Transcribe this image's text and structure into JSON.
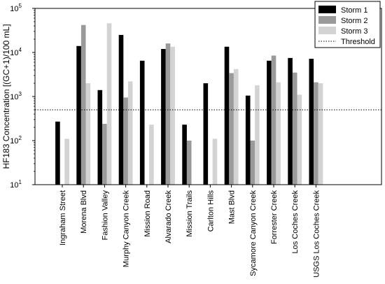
{
  "chart_data": {
    "type": "bar",
    "title": "",
    "xlabel": "",
    "ylabel": "HF183 Concentration [(GC+1)/100 mL]",
    "y_scale": "log",
    "ylim": [
      10,
      100000
    ],
    "y_ticks": [
      {
        "value": 10,
        "base": "10",
        "exp": "1"
      },
      {
        "value": 100,
        "base": "10",
        "exp": "2"
      },
      {
        "value": 1000,
        "base": "10",
        "exp": "3"
      },
      {
        "value": 10000,
        "base": "10",
        "exp": "4"
      },
      {
        "value": 100000,
        "base": "10",
        "exp": "5"
      }
    ],
    "categories": [
      "Ingraham Street",
      "Morena Blvd",
      "Fashion Valley",
      "Murphy Canyon Creek",
      "Mission Road",
      "Alvarado Creek",
      "Mission Trails",
      "Carlton Hills",
      "Mast Blvd",
      "Sycamore Canyon Creek",
      "Forrester Creek",
      "Los Coches Creek",
      "USGS Los Coches Creek"
    ],
    "series": [
      {
        "name": "Storm 1",
        "color": "#000000",
        "values": [
          270,
          14000,
          1400,
          25000,
          6500,
          12000,
          230,
          2000,
          13500,
          1050,
          6500,
          7500,
          7200
        ]
      },
      {
        "name": "Storm 2",
        "color": "#9a9a9a",
        "values": [
          null,
          42000,
          240,
          950,
          null,
          16000,
          100,
          null,
          3400,
          100,
          8500,
          3500,
          2100
        ]
      },
      {
        "name": "Storm 3",
        "color": "#d3d3d3",
        "values": [
          110,
          2000,
          46000,
          2200,
          230,
          13500,
          null,
          110,
          4200,
          1800,
          2100,
          1100,
          2000
        ]
      }
    ],
    "threshold": {
      "name": "Threshold",
      "value": 500,
      "style": "dotted"
    },
    "legend": {
      "position": "top-right"
    },
    "grid": false
  }
}
